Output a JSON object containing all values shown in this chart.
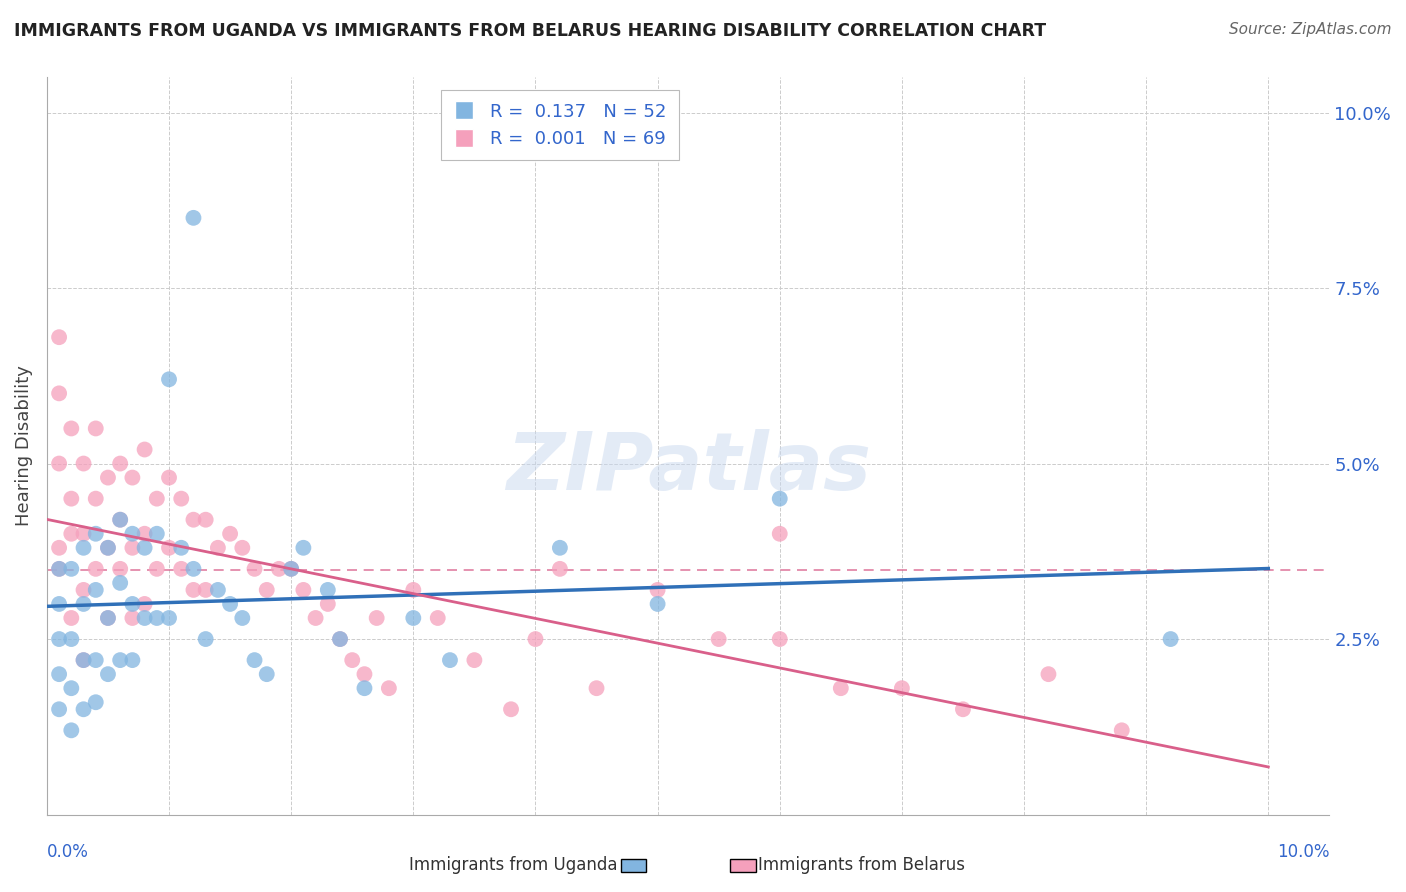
{
  "title": "IMMIGRANTS FROM UGANDA VS IMMIGRANTS FROM BELARUS HEARING DISABILITY CORRELATION CHART",
  "source": "Source: ZipAtlas.com",
  "ylabel": "Hearing Disability",
  "ylim": [
    0,
    0.105
  ],
  "xlim": [
    0,
    0.105
  ],
  "yticks": [
    0.0,
    0.025,
    0.05,
    0.075,
    0.1
  ],
  "ytick_labels": [
    "",
    "2.5%",
    "5.0%",
    "7.5%",
    "10.0%"
  ],
  "watermark": "ZIPatlas",
  "color_uganda": "#82b5e0",
  "color_belarus": "#f5a0bc",
  "line_color_uganda": "#3070b8",
  "line_color_belarus": "#d95f8a",
  "background_color": "#ffffff",
  "uganda_points_x": [
    0.001,
    0.001,
    0.001,
    0.001,
    0.001,
    0.002,
    0.002,
    0.002,
    0.002,
    0.003,
    0.003,
    0.003,
    0.003,
    0.004,
    0.004,
    0.004,
    0.004,
    0.005,
    0.005,
    0.005,
    0.006,
    0.006,
    0.006,
    0.007,
    0.007,
    0.007,
    0.008,
    0.008,
    0.009,
    0.009,
    0.01,
    0.01,
    0.011,
    0.012,
    0.012,
    0.013,
    0.014,
    0.015,
    0.016,
    0.017,
    0.018,
    0.02,
    0.021,
    0.023,
    0.024,
    0.026,
    0.03,
    0.033,
    0.042,
    0.05,
    0.06,
    0.092
  ],
  "uganda_points_y": [
    0.035,
    0.03,
    0.025,
    0.02,
    0.015,
    0.035,
    0.025,
    0.018,
    0.012,
    0.038,
    0.03,
    0.022,
    0.015,
    0.04,
    0.032,
    0.022,
    0.016,
    0.038,
    0.028,
    0.02,
    0.042,
    0.033,
    0.022,
    0.04,
    0.03,
    0.022,
    0.038,
    0.028,
    0.04,
    0.028,
    0.062,
    0.028,
    0.038,
    0.085,
    0.035,
    0.025,
    0.032,
    0.03,
    0.028,
    0.022,
    0.02,
    0.035,
    0.038,
    0.032,
    0.025,
    0.018,
    0.028,
    0.022,
    0.038,
    0.03,
    0.045,
    0.025
  ],
  "belarus_points_x": [
    0.001,
    0.001,
    0.001,
    0.001,
    0.001,
    0.002,
    0.002,
    0.002,
    0.002,
    0.003,
    0.003,
    0.003,
    0.003,
    0.004,
    0.004,
    0.004,
    0.005,
    0.005,
    0.005,
    0.006,
    0.006,
    0.006,
    0.007,
    0.007,
    0.007,
    0.008,
    0.008,
    0.008,
    0.009,
    0.009,
    0.01,
    0.01,
    0.011,
    0.011,
    0.012,
    0.012,
    0.013,
    0.013,
    0.014,
    0.015,
    0.016,
    0.017,
    0.018,
    0.019,
    0.02,
    0.021,
    0.022,
    0.023,
    0.024,
    0.025,
    0.026,
    0.027,
    0.028,
    0.03,
    0.032,
    0.035,
    0.038,
    0.04,
    0.042,
    0.045,
    0.05,
    0.055,
    0.06,
    0.065,
    0.075,
    0.082,
    0.088,
    0.06,
    0.07
  ],
  "belarus_points_y": [
    0.038,
    0.05,
    0.06,
    0.068,
    0.035,
    0.045,
    0.055,
    0.04,
    0.028,
    0.05,
    0.04,
    0.032,
    0.022,
    0.055,
    0.045,
    0.035,
    0.048,
    0.038,
    0.028,
    0.05,
    0.042,
    0.035,
    0.048,
    0.038,
    0.028,
    0.052,
    0.04,
    0.03,
    0.045,
    0.035,
    0.048,
    0.038,
    0.045,
    0.035,
    0.042,
    0.032,
    0.042,
    0.032,
    0.038,
    0.04,
    0.038,
    0.035,
    0.032,
    0.035,
    0.035,
    0.032,
    0.028,
    0.03,
    0.025,
    0.022,
    0.02,
    0.028,
    0.018,
    0.032,
    0.028,
    0.022,
    0.015,
    0.025,
    0.035,
    0.018,
    0.032,
    0.025,
    0.025,
    0.018,
    0.015,
    0.02,
    0.012,
    0.04,
    0.018
  ]
}
